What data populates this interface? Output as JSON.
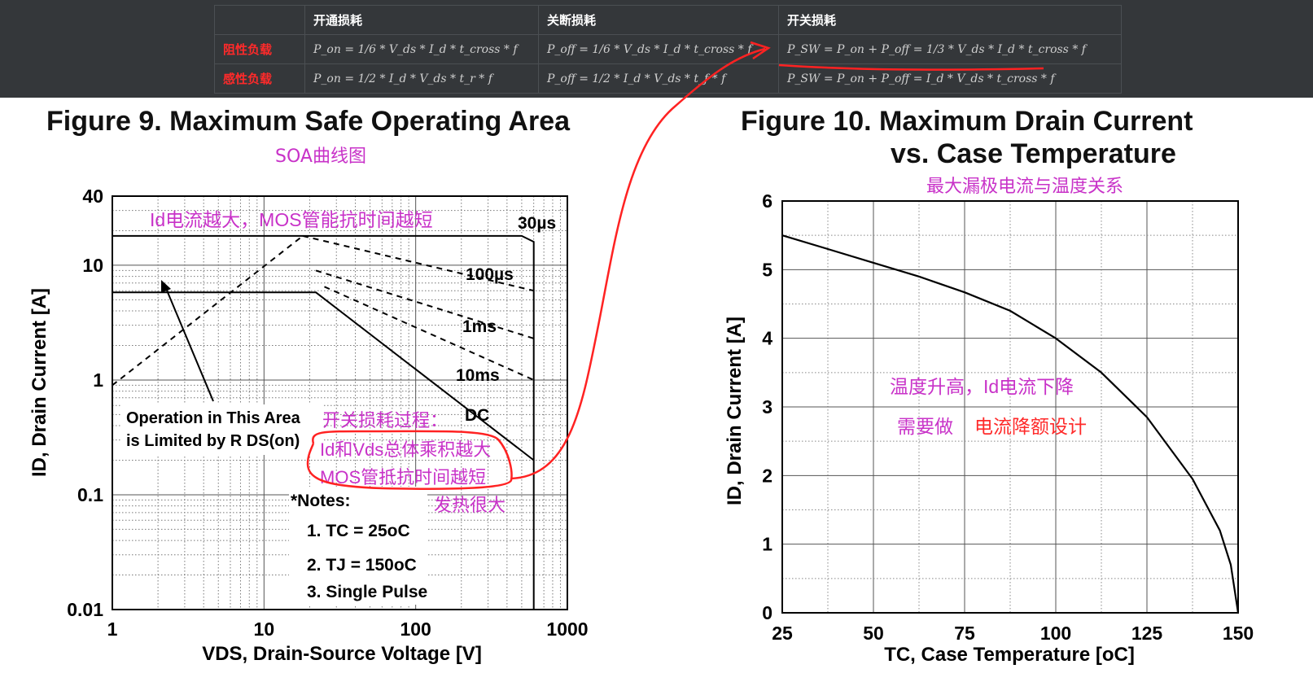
{
  "formula_table": {
    "headers": [
      "",
      "开通损耗",
      "关断损耗",
      "开关损耗"
    ],
    "rows": [
      {
        "label": "阻性负载",
        "on": "P_on = 1/6 * V_ds * I_d * t_cross * f",
        "off": "P_off = 1/6 * V_ds * I_d * t_cross * f",
        "sw": "P_SW = P_on + P_off = 1/3 * V_ds * I_d * t_cross * f"
      },
      {
        "label": "感性负载",
        "on": "P_on = 1/2 * I_d * V_ds * t_r * f",
        "off": "P_off = 1/2 * I_d * V_ds * t_f * f",
        "sw": "P_SW = P_on + P_off = I_d * V_ds * t_cross * f"
      }
    ]
  },
  "fig9": {
    "title": "Figure 9. Maximum Safe Operating Area",
    "subtitle_cn": "SOA曲线图",
    "annotation_cn_top": "Id电流越大，MOS管能抗时间越短",
    "annotation_cn_mid": [
      "开关损耗过程：",
      "Id和Vds总体乘积越大",
      "MOS管抵抗时间越短",
      "发热很大"
    ],
    "operation_text": [
      "Operation in This Area",
      "is Limited by R DS(on)"
    ],
    "notes": [
      "*Notes:",
      "1. TC = 25oC",
      "2. TJ = 150oC",
      "3. Single Pulse"
    ]
  },
  "fig10": {
    "title_line1": "Figure 10. Maximum Drain Current",
    "title_line2": "vs. Case Temperature",
    "subtitle_cn": "最大漏极电流与温度关系",
    "annotation_cn_1": "温度升高，Id电流下降",
    "annotation_cn_2a": "需要做",
    "annotation_cn_2b": "电流降额设计"
  },
  "chart_data": [
    {
      "type": "line",
      "title": "Figure 9. Maximum Safe Operating Area",
      "xlabel": "VDS, Drain-Source Voltage [V]",
      "ylabel": "ID, Drain Current [A]",
      "xscale": "log",
      "yscale": "log",
      "xlim": [
        1,
        1000
      ],
      "ylim": [
        0.01,
        40
      ],
      "x_ticks": [
        "1",
        "10",
        "100",
        "1000"
      ],
      "y_ticks": [
        "0.01",
        "0.1",
        "1",
        "10",
        "40"
      ],
      "grid": true,
      "series": [
        {
          "name": "30µs",
          "points": [
            [
              1,
              18
            ],
            [
              500,
              18
            ],
            [
              600,
              16
            ],
            [
              600,
              0.01
            ]
          ]
        },
        {
          "name": "100µs",
          "points": [
            [
              18,
              18
            ],
            [
              600,
              6
            ]
          ]
        },
        {
          "name": "1ms",
          "points": [
            [
              22,
              9
            ],
            [
              600,
              2.3
            ]
          ]
        },
        {
          "name": "10ms",
          "points": [
            [
              25,
              6.5
            ],
            [
              600,
              1.0
            ]
          ]
        },
        {
          "name": "DC",
          "points": [
            [
              1,
              5.8
            ],
            [
              22,
              5.8
            ],
            [
              600,
              0.2
            ]
          ]
        },
        {
          "name": "RDS(on) limit",
          "points": [
            [
              1,
              0.9
            ],
            [
              18,
              18
            ]
          ]
        }
      ]
    },
    {
      "type": "line",
      "title": "Figure 10. Maximum Drain Current vs. Case Temperature",
      "xlabel": "TC, Case Temperature [oC]",
      "ylabel": "ID, Drain Current [A]",
      "xlim": [
        25,
        150
      ],
      "ylim": [
        0,
        6
      ],
      "x_ticks": [
        "25",
        "50",
        "75",
        "100",
        "125",
        "150"
      ],
      "y_ticks": [
        "0",
        "1",
        "2",
        "3",
        "4",
        "5",
        "6"
      ],
      "grid": true,
      "series": [
        {
          "x": [
            25,
            37.5,
            50,
            62.5,
            75,
            87.5,
            100,
            112.5,
            125,
            137.5,
            145,
            148,
            150
          ],
          "values": [
            5.5,
            5.3,
            5.1,
            4.9,
            4.67,
            4.4,
            4.0,
            3.5,
            2.85,
            1.95,
            1.2,
            0.7,
            0.0
          ]
        }
      ]
    }
  ],
  "colors": {
    "curve": "#000000",
    "annotation": "#c832c8",
    "highlight": "#ff2222",
    "table_bg": "#34373a"
  }
}
